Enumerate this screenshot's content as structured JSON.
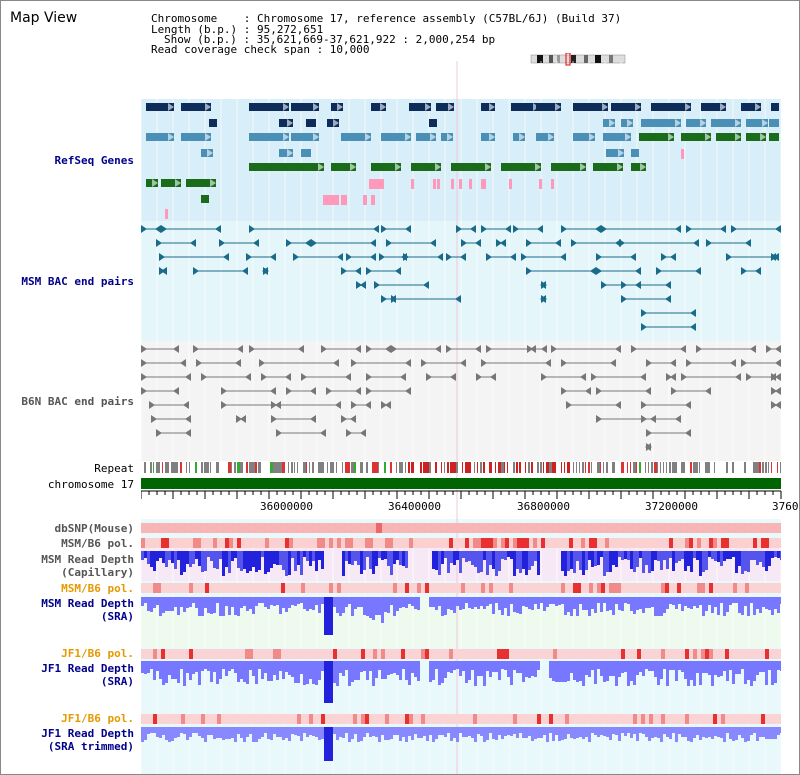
{
  "window": {
    "title": "Map View"
  },
  "header": {
    "chromosome": "Chromosome    : Chromosome 17, reference assembly (C57BL/6J) (Build 37)",
    "length": "Length (b.p.) : 95,272,651",
    "show": "Show (b.p.) : 35,621,669-37,621,922 : 2,000,254 bp",
    "read_coverage": "Read coverage check span : 10,000"
  },
  "tracks": {
    "refseq": "RefSeq Genes",
    "msm_bac": "MSM BAC end pairs",
    "b6n_bac": "B6N BAC end pairs",
    "repeat": "Repeat",
    "chromosome": "chromosome 17",
    "dbsnp": "dbSNP(Mouse)",
    "msm_b6_pol_1": "MSM/B6 pol.",
    "msm_depth_cap_1": "MSM Read Depth",
    "msm_depth_cap_2": "(Capillary)",
    "msm_b6_pol_2": "MSM/B6 pol.",
    "msm_depth_sra_1": "MSM Read Depth",
    "msm_depth_sra_2": "(SRA)",
    "jf1_b6_pol_1": "JF1/B6 pol.",
    "jf1_depth_sra_1": "JF1 Read Depth",
    "jf1_depth_sra_2": "(SRA)",
    "jf1_b6_pol_2": "JF1/B6 pol.",
    "jf1_depth_trim_1": "JF1 Read Depth",
    "jf1_depth_trim_2": "(SRA trimmed)"
  },
  "ruler": {
    "ticks": [
      "36000000",
      "36400000",
      "36800000",
      "37200000",
      "3760"
    ]
  },
  "colors": {
    "refseq_bg": "#d8eef8",
    "msm_bg": "#e4f6fa",
    "b6n_bg": "#f2f2f2",
    "dark_navy": "#0d2c5a",
    "steel_blue": "#4a8fb5",
    "green": "#1a6b1a",
    "pink": "#ff99bb",
    "teal": "#1a6b8a",
    "gray_bac": "#777777",
    "chromosome_green": "#006400",
    "depth_blue": "#3333ff",
    "depth_light": "#7777ff",
    "pol_red": "#ee2222"
  }
}
